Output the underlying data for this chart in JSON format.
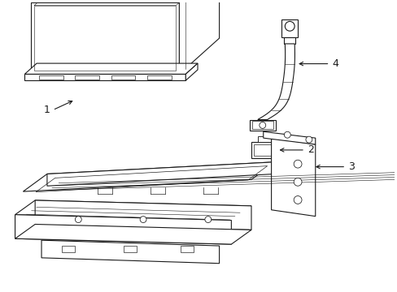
{
  "background_color": "#ffffff",
  "line_color": "#1a1a1a",
  "line_width": 0.8,
  "font_size": 9,
  "label_1": "1",
  "label_2": "2",
  "label_3": "3",
  "label_4": "4"
}
